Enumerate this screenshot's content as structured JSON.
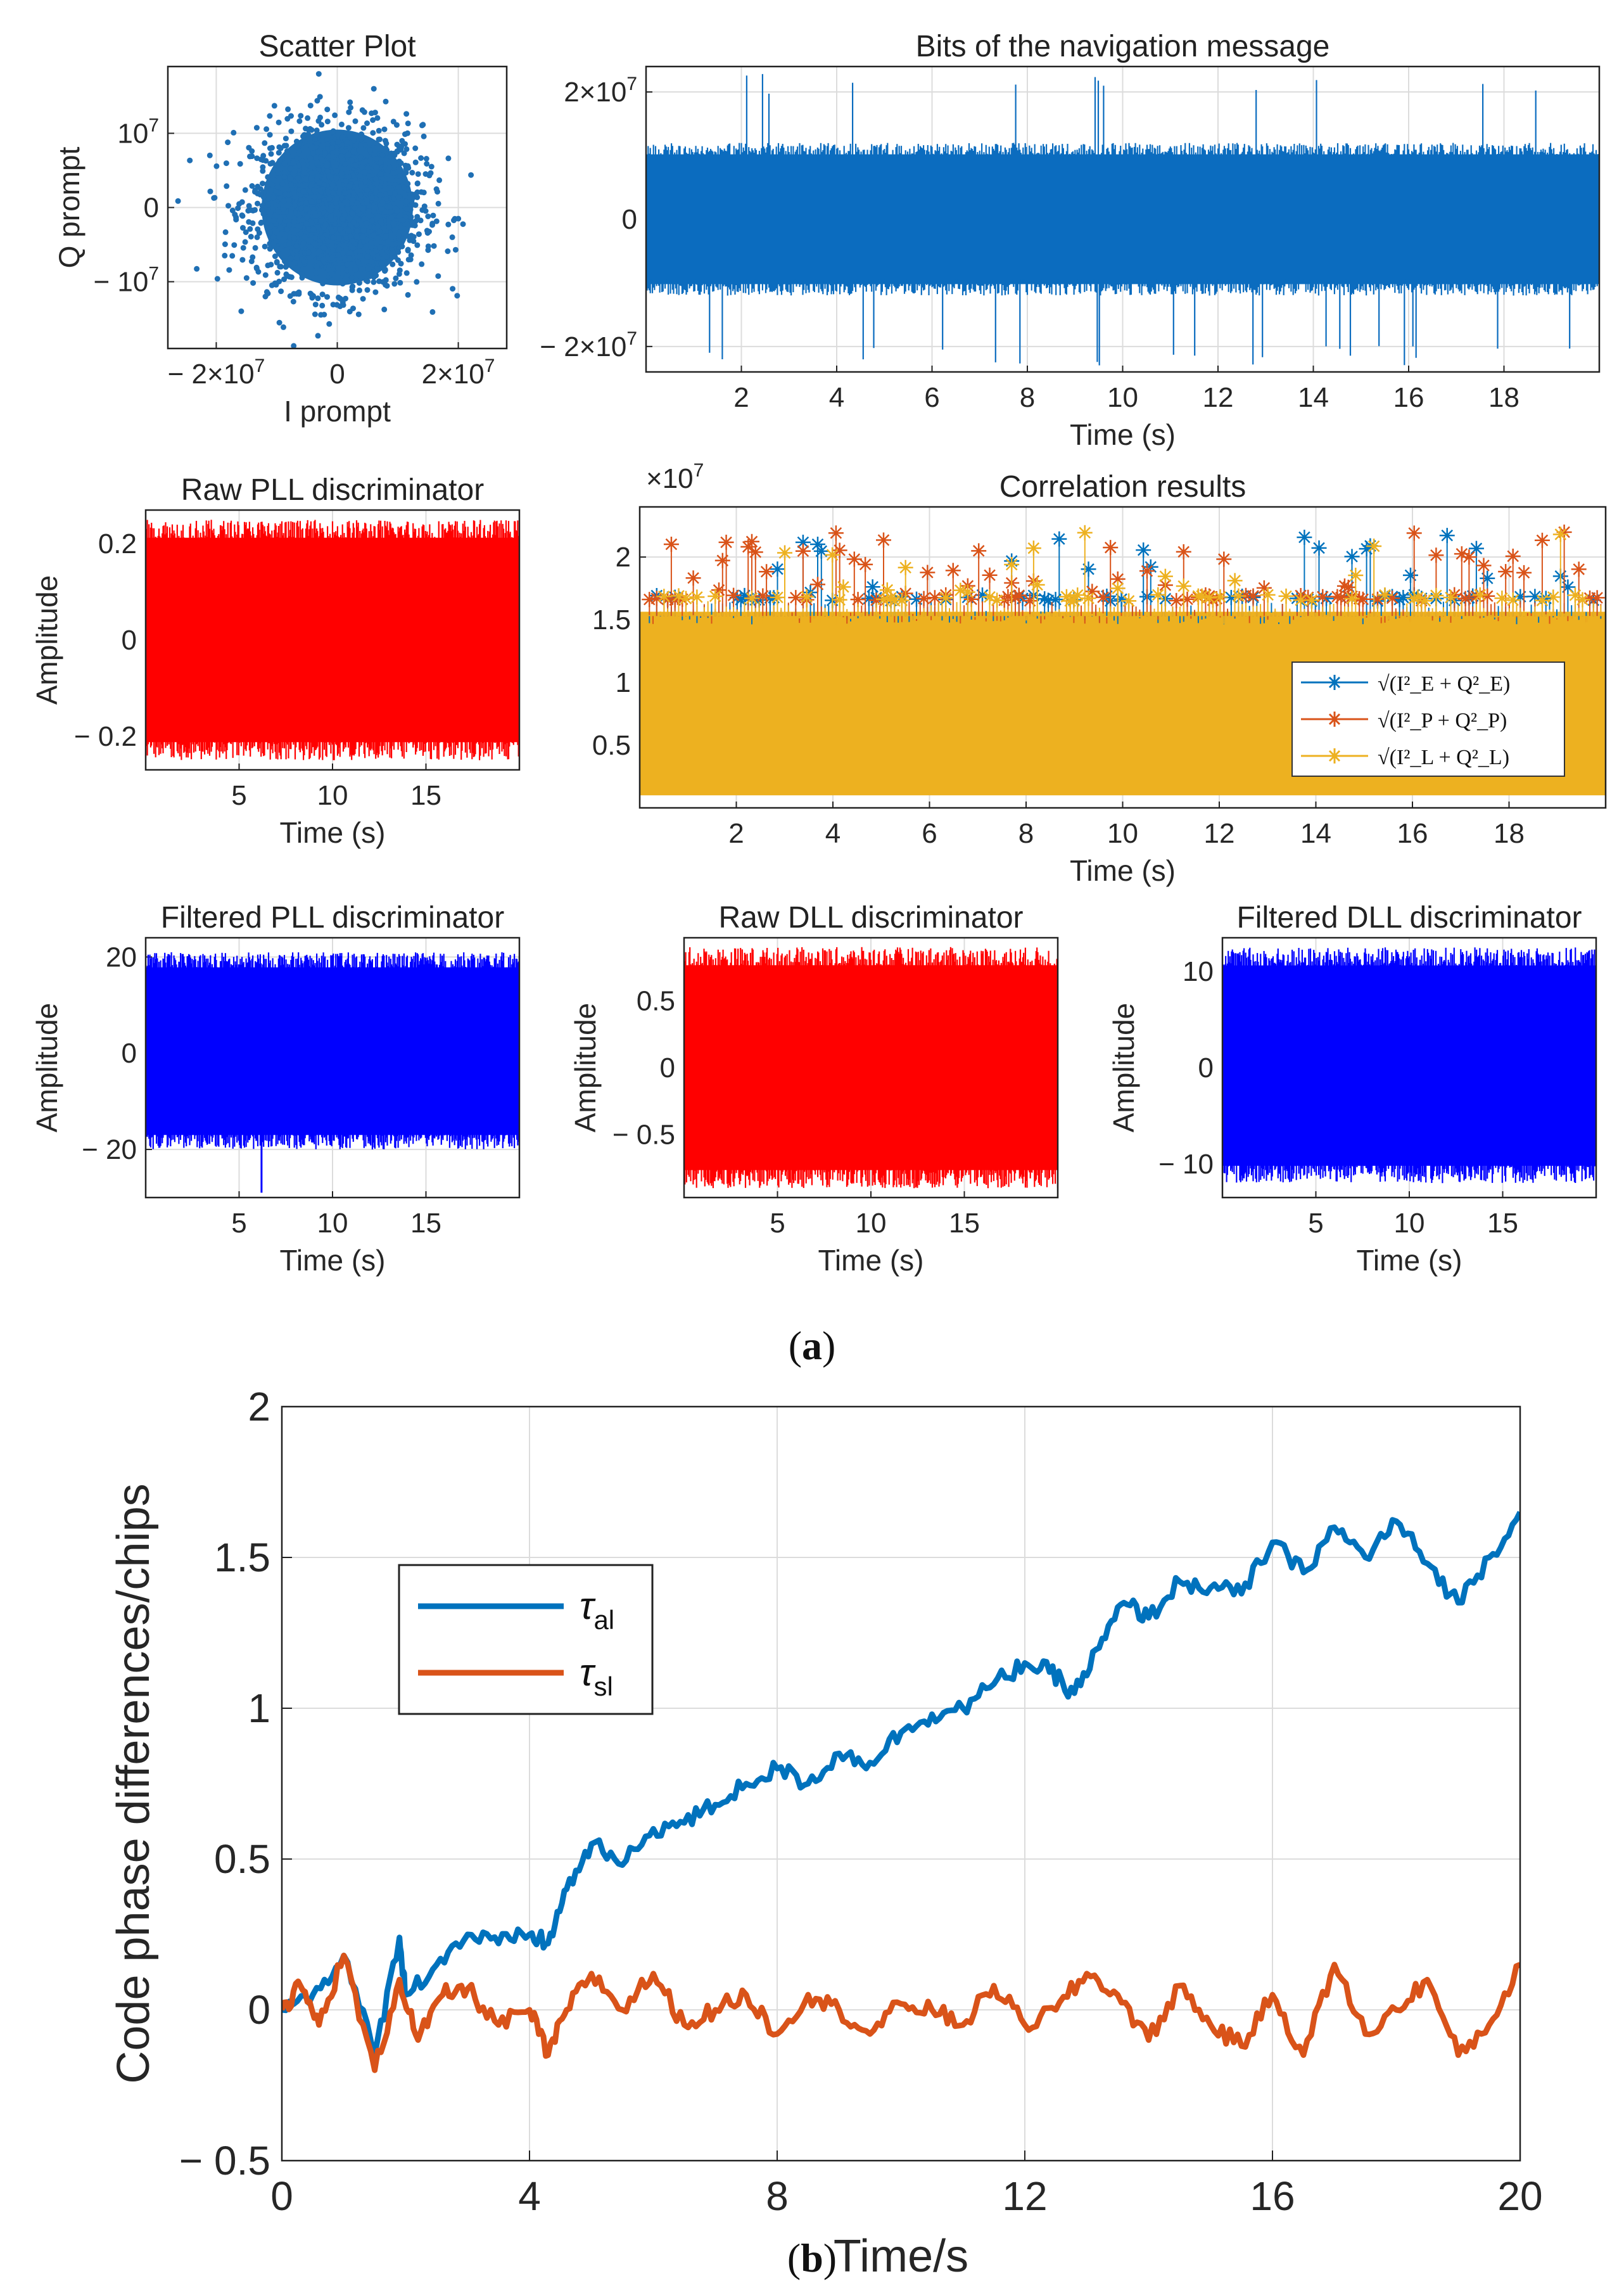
{
  "chart_data": [
    {
      "id": "scatter",
      "type": "scatter",
      "title": "Scatter Plot",
      "xlabel": "I prompt",
      "ylabel": "Q prompt",
      "xlim": [
        -28000000.0,
        28000000.0
      ],
      "ylim": [
        -19000000.0,
        19000000.0
      ],
      "xticks": [
        {
          "v": -20000000.0,
          "label": "− 2×10",
          "exp": "7"
        },
        {
          "v": 0,
          "label": "0",
          "exp": ""
        },
        {
          "v": 20000000.0,
          "label": "2×10",
          "exp": "7"
        }
      ],
      "yticks": [
        {
          "v": 10000000.0,
          "label": "10",
          "exp": "7"
        },
        {
          "v": 0,
          "label": "0",
          "exp": ""
        },
        {
          "v": -10000000.0,
          "label": "− 10",
          "exp": "7"
        }
      ],
      "cloud": {
        "sx": 7000000.0,
        "sy": 5500000.0,
        "points": 1800
      },
      "color": "#1f6fb4"
    },
    {
      "id": "navbits",
      "type": "line",
      "title": "Bits of the navigation message",
      "xlabel": "Time (s)",
      "ylabel": "",
      "xlim": [
        0,
        20
      ],
      "ylim": [
        -24000000.0,
        24000000.0
      ],
      "xticks": [
        2,
        4,
        6,
        8,
        10,
        12,
        14,
        16,
        18
      ],
      "yticks": [
        {
          "v": 20000000.0,
          "label": "2×10",
          "exp": "7"
        },
        {
          "v": 0,
          "label": "0",
          "exp": ""
        },
        {
          "v": -20000000.0,
          "label": "− 2×10",
          "exp": "7"
        }
      ],
      "band": [
        -12000000.0,
        12000000.0
      ],
      "spikes": 23000000.0,
      "color": "#0b6cbf"
    },
    {
      "id": "rawpll",
      "type": "line",
      "title": "Raw PLL discriminator",
      "xlabel": "Time (s)",
      "ylabel": "Amplitude",
      "xlim": [
        0,
        20
      ],
      "ylim": [
        -0.27,
        0.27
      ],
      "xticks": [
        5,
        10,
        15
      ],
      "yticks": [
        {
          "v": 0.2,
          "label": "0.2",
          "exp": ""
        },
        {
          "v": 0,
          "label": "0",
          "exp": ""
        },
        {
          "v": -0.2,
          "label": "− 0.2",
          "exp": ""
        }
      ],
      "band": [
        -0.25,
        0.25
      ],
      "color": "#ff0000"
    },
    {
      "id": "corr",
      "type": "line",
      "title": "Correlation results",
      "xlabel": "Time (s)",
      "ylabel": "",
      "multiplier": "×10",
      "multiplier_exp": "7",
      "xlim": [
        0,
        20
      ],
      "ylim": [
        0,
        24000000.0
      ],
      "xticks": [
        2,
        4,
        6,
        8,
        10,
        12,
        14,
        16,
        18
      ],
      "yticks": [
        {
          "v": 20000000.0,
          "label": "2",
          "exp": ""
        },
        {
          "v": 15000000.0,
          "label": "1.5",
          "exp": ""
        },
        {
          "v": 10000000.0,
          "label": "1",
          "exp": ""
        },
        {
          "v": 5000000.0,
          "label": "0.5",
          "exp": ""
        }
      ],
      "series": [
        {
          "name": "√(I²_E + Q²_E)",
          "legend_sub": "E",
          "color": "#0072bd"
        },
        {
          "name": "√(I²_P + Q²_P)",
          "legend_sub": "P",
          "color": "#d95319"
        },
        {
          "name": "√(I²_L + Q²_L)",
          "legend_sub": "L",
          "color": "#edb120"
        }
      ],
      "band": [
        1000000.0,
        17000000.0
      ],
      "peaks_max": 22000000.0
    },
    {
      "id": "filtpll",
      "type": "line",
      "title": "Filtered PLL discriminator",
      "xlabel": "Time (s)",
      "ylabel": "Amplitude",
      "xlim": [
        0,
        20
      ],
      "ylim": [
        -30,
        24
      ],
      "xticks": [
        5,
        10,
        15
      ],
      "yticks": [
        {
          "v": 20,
          "label": "20",
          "exp": ""
        },
        {
          "v": 0,
          "label": "0",
          "exp": ""
        },
        {
          "v": -20,
          "label": "− 20",
          "exp": ""
        }
      ],
      "band": [
        -20,
        21
      ],
      "outlier": {
        "t": 6.2,
        "v": -29
      },
      "color": "#0000ff"
    },
    {
      "id": "rawdll",
      "type": "line",
      "title": "Raw DLL discriminator",
      "xlabel": "Time (s)",
      "ylabel": "Amplitude",
      "xlim": [
        0,
        20
      ],
      "ylim": [
        -0.97,
        0.97
      ],
      "xticks": [
        5,
        10,
        15
      ],
      "yticks": [
        {
          "v": 0.5,
          "label": "0.5",
          "exp": ""
        },
        {
          "v": 0,
          "label": "0",
          "exp": ""
        },
        {
          "v": -0.5,
          "label": "− 0.5",
          "exp": ""
        }
      ],
      "band": [
        -0.9,
        0.9
      ],
      "color": "#ff0000"
    },
    {
      "id": "filtdll",
      "type": "line",
      "title": "Filtered DLL discriminator",
      "xlabel": "Time (s)",
      "ylabel": "Amplitude",
      "xlim": [
        0,
        20
      ],
      "ylim": [
        -13.5,
        13.5
      ],
      "xticks": [
        5,
        10,
        15
      ],
      "yticks": [
        {
          "v": 10,
          "label": "10",
          "exp": ""
        },
        {
          "v": 0,
          "label": "0",
          "exp": ""
        },
        {
          "v": -10,
          "label": "− 10",
          "exp": ""
        }
      ],
      "band": [
        -12,
        12.5
      ],
      "color": "#0000ff"
    },
    {
      "id": "codephase",
      "type": "line",
      "title": "",
      "xlabel": "Time/s",
      "ylabel": "Code phase differences/chips",
      "xlim": [
        0,
        20
      ],
      "ylim": [
        -0.5,
        2
      ],
      "xticks": [
        0,
        4,
        8,
        12,
        16,
        20
      ],
      "yticks": [
        {
          "v": 2,
          "label": "2",
          "exp": ""
        },
        {
          "v": 1.5,
          "label": "1.5",
          "exp": ""
        },
        {
          "v": 1,
          "label": "1",
          "exp": ""
        },
        {
          "v": 0.5,
          "label": "0.5",
          "exp": ""
        },
        {
          "v": 0,
          "label": "0",
          "exp": ""
        },
        {
          "v": -0.5,
          "label": "− 0.5",
          "exp": ""
        }
      ],
      "series": [
        {
          "name": "τal",
          "sym": "τ",
          "sub": "al",
          "color": "#0072bd",
          "x": [
            0,
            0.5,
            1.0,
            1.5,
            1.9,
            2.0,
            2.5,
            3.0,
            3.5,
            4.0,
            4.3,
            4.6,
            5.0,
            5.5,
            6.0,
            6.5,
            7.0,
            7.5,
            8.0,
            8.5,
            9.0,
            9.5,
            10.0,
            10.5,
            11.0,
            11.5,
            12.0,
            12.4,
            12.8,
            13.2,
            13.6,
            14.0,
            14.5,
            15.0,
            15.5,
            16.0,
            16.5,
            17.0,
            17.5,
            18.0,
            18.5,
            19.0,
            19.5,
            20.0
          ],
          "values": [
            0.0,
            0.05,
            0.18,
            -0.15,
            0.24,
            0.05,
            0.15,
            0.25,
            0.22,
            0.25,
            0.22,
            0.4,
            0.55,
            0.48,
            0.6,
            0.62,
            0.68,
            0.75,
            0.8,
            0.75,
            0.85,
            0.82,
            0.92,
            0.98,
            1.0,
            1.08,
            1.15,
            1.12,
            1.05,
            1.2,
            1.35,
            1.3,
            1.42,
            1.4,
            1.38,
            1.55,
            1.45,
            1.6,
            1.5,
            1.62,
            1.48,
            1.35,
            1.5,
            1.65
          ]
        },
        {
          "name": "τsl",
          "sym": "τ",
          "sub": "sl",
          "color": "#d95319",
          "x": [
            0,
            0.3,
            0.6,
            1.0,
            1.5,
            1.9,
            2.2,
            2.6,
            3.0,
            3.5,
            4.0,
            4.3,
            4.6,
            5.0,
            5.5,
            6.0,
            6.5,
            7.0,
            7.5,
            8.0,
            8.5,
            9.0,
            9.5,
            10.0,
            10.5,
            11.0,
            11.5,
            12.0,
            12.5,
            13.0,
            13.5,
            14.0,
            14.5,
            15.0,
            15.5,
            16.0,
            16.5,
            17.0,
            17.5,
            18.0,
            18.5,
            19.0,
            19.5,
            20.0
          ],
          "values": [
            0.0,
            0.08,
            -0.05,
            0.18,
            -0.2,
            0.1,
            -0.1,
            0.05,
            0.07,
            -0.05,
            0.0,
            -0.15,
            0.0,
            0.12,
            0.0,
            0.12,
            -0.05,
            0.0,
            0.05,
            -0.08,
            0.05,
            0.0,
            -0.08,
            0.02,
            0.0,
            -0.05,
            0.08,
            -0.05,
            0.0,
            0.12,
            0.05,
            -0.1,
            0.08,
            -0.05,
            -0.12,
            0.05,
            -0.15,
            0.15,
            -0.08,
            0.0,
            0.1,
            -0.15,
            -0.05,
            0.15
          ]
        }
      ]
    }
  ],
  "panel_labels": {
    "a": "a",
    "b": "b"
  }
}
